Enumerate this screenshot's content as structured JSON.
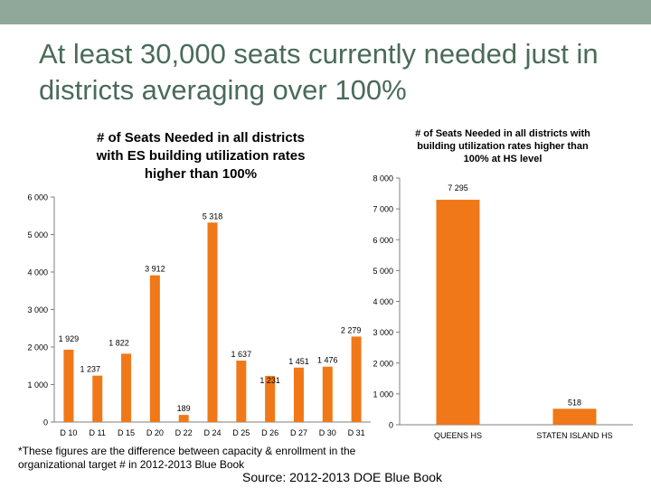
{
  "slide": {
    "title": "At least 30,000 seats currently needed just in districts averaging over 100%",
    "footnote": "*These figures are the difference between capacity & enrollment in the organizational target # in 2012-2013 Blue Book",
    "source": "Source: 2012-2013 DOE Blue Book"
  },
  "colors": {
    "bar": "#f07818",
    "axis": "#7f7f7f",
    "band": "#8fa89a",
    "title": "#4a6b5a"
  },
  "chart_data": [
    {
      "type": "bar",
      "title": "# of Seats Needed in all districts with ES building utilization rates higher than 100%",
      "title_lines": [
        "# of Seats Needed in all districts",
        "with ES building utilization rates",
        "higher than 100%"
      ],
      "categories": [
        "D10",
        "D11",
        "D15",
        "D20",
        "D22",
        "D24",
        "D25",
        "D26",
        "D27",
        "D30",
        "D31"
      ],
      "category_labels": [
        "D 10",
        "D 11",
        "D 15",
        "D 20",
        "D 22",
        "D 24",
        "D 25",
        "D 26",
        "D 27",
        "D 30",
        "D 31"
      ],
      "values": [
        1929,
        1237,
        1822,
        3912,
        189,
        5318,
        1637,
        1231,
        1451,
        1476,
        2279
      ],
      "value_labels": [
        "1 929",
        "1 237",
        "1 822",
        "3 912",
        "189",
        "5 318",
        "1 637",
        "1 231",
        "1 451",
        "1 476",
        "2 279"
      ],
      "ylim": [
        0,
        6000
      ],
      "yticks": [
        0,
        1000,
        2000,
        3000,
        4000,
        5000,
        6000
      ],
      "ytick_labels": [
        "0",
        "1 000",
        "2 000",
        "3 000",
        "4 000",
        "5 000",
        "6 000"
      ],
      "xlabel": "",
      "ylabel": "",
      "grid": false
    },
    {
      "type": "bar",
      "title": "# of Seats Needed in all districts with building utilization rates higher than 100% at HS level",
      "title_lines": [
        "# of Seats Needed in all districts with",
        "building utilization rates higher than",
        "100% at HS level"
      ],
      "categories": [
        "QUEENS HS",
        "STATEN ISLAND HS"
      ],
      "category_labels": [
        "QUEENS HS",
        "STATEN ISLAND HS"
      ],
      "values": [
        7295,
        518
      ],
      "value_labels": [
        "7 295",
        "518"
      ],
      "ylim": [
        0,
        8000
      ],
      "yticks": [
        0,
        1000,
        2000,
        3000,
        4000,
        5000,
        6000,
        7000,
        8000
      ],
      "ytick_labels": [
        "0",
        "1 000",
        "2 000",
        "3 000",
        "4 000",
        "5 000",
        "6 000",
        "7 000",
        "8 000"
      ],
      "xlabel": "",
      "ylabel": "",
      "grid": false
    }
  ]
}
